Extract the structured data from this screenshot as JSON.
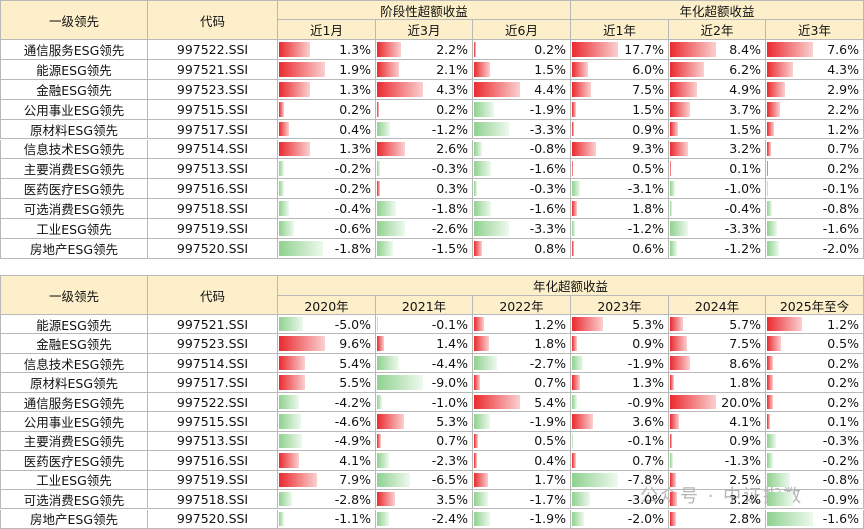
{
  "tables": [
    {
      "header": {
        "name": "一级领先",
        "code": "代码",
        "groups": [
          {
            "label": "阶段性超额收益",
            "columns": [
              "近1月",
              "近3月",
              "近6月"
            ]
          },
          {
            "label": "年化超额收益",
            "columns": [
              "近1年",
              "近2年",
              "近3年"
            ]
          }
        ]
      },
      "rows": [
        [
          "通信服务ESG领先",
          "997522.SSI",
          "1.3%",
          "2.2%",
          "0.2%",
          "17.7%",
          "8.4%",
          "7.6%"
        ],
        [
          "能源ESG领先",
          "997521.SSI",
          "1.9%",
          "2.1%",
          "1.5%",
          "6.0%",
          "6.2%",
          "4.3%"
        ],
        [
          "金融ESG领先",
          "997523.SSI",
          "1.3%",
          "4.3%",
          "4.4%",
          "7.5%",
          "4.9%",
          "2.9%"
        ],
        [
          "公用事业ESG领先",
          "997515.SSI",
          "0.2%",
          "0.2%",
          "-1.9%",
          "1.5%",
          "3.7%",
          "2.2%"
        ],
        [
          "原材料ESG领先",
          "997517.SSI",
          "0.4%",
          "-1.2%",
          "-3.3%",
          "0.9%",
          "1.5%",
          "1.2%"
        ],
        [
          "信息技术ESG领先",
          "997514.SSI",
          "1.3%",
          "2.6%",
          "-0.8%",
          "9.3%",
          "3.2%",
          "0.7%"
        ],
        [
          "主要消费ESG领先",
          "997513.SSI",
          "-0.2%",
          "-0.3%",
          "-1.6%",
          "0.5%",
          "0.1%",
          "0.2%"
        ],
        [
          "医药医疗ESG领先",
          "997516.SSI",
          "-0.2%",
          "0.3%",
          "-0.3%",
          "-3.1%",
          "-1.0%",
          "-0.1%"
        ],
        [
          "可选消费ESG领先",
          "997518.SSI",
          "-0.4%",
          "-1.8%",
          "-1.6%",
          "1.8%",
          "-0.4%",
          "-0.8%"
        ],
        [
          "工业ESG领先",
          "997519.SSI",
          "-0.6%",
          "-2.6%",
          "-3.3%",
          "-1.2%",
          "-3.3%",
          "-1.6%"
        ],
        [
          "房地产ESG领先",
          "997520.SSI",
          "-1.8%",
          "-1.5%",
          "0.8%",
          "0.6%",
          "-1.2%",
          "-2.0%"
        ]
      ]
    },
    {
      "header": {
        "name": "一级领先",
        "code": "代码",
        "groups": [
          {
            "label": "年化超额收益",
            "columns": [
              "2020年",
              "2021年",
              "2022年",
              "2023年",
              "2024年",
              "2025年至今"
            ]
          }
        ]
      },
      "rows": [
        [
          "能源ESG领先",
          "997521.SSI",
          "-5.0%",
          "-0.1%",
          "1.2%",
          "5.3%",
          "5.7%",
          "1.2%"
        ],
        [
          "金融ESG领先",
          "997523.SSI",
          "9.6%",
          "1.4%",
          "1.8%",
          "0.9%",
          "7.5%",
          "0.5%"
        ],
        [
          "信息技术ESG领先",
          "997514.SSI",
          "5.4%",
          "-4.4%",
          "-2.7%",
          "-1.9%",
          "8.6%",
          "0.2%"
        ],
        [
          "原材料ESG领先",
          "997517.SSI",
          "5.5%",
          "-9.0%",
          "0.7%",
          "1.3%",
          "1.8%",
          "0.2%"
        ],
        [
          "通信服务ESG领先",
          "997522.SSI",
          "-4.2%",
          "-1.0%",
          "5.4%",
          "-0.9%",
          "20.0%",
          "0.2%"
        ],
        [
          "公用事业ESG领先",
          "997515.SSI",
          "-4.6%",
          "5.3%",
          "-1.9%",
          "3.6%",
          "4.1%",
          "0.1%"
        ],
        [
          "主要消费ESG领先",
          "997513.SSI",
          "-4.9%",
          "0.7%",
          "0.5%",
          "-0.1%",
          "0.9%",
          "-0.3%"
        ],
        [
          "医药医疗ESG领先",
          "997516.SSI",
          "4.1%",
          "-2.3%",
          "0.4%",
          "0.7%",
          "-1.3%",
          "-0.2%"
        ],
        [
          "工业ESG领先",
          "997519.SSI",
          "7.9%",
          "-6.5%",
          "1.7%",
          "-7.8%",
          "2.5%",
          "-0.8%"
        ],
        [
          "可选消费ESG领先",
          "997518.SSI",
          "-2.8%",
          "3.5%",
          "-1.7%",
          "-3.0%",
          "3.2%",
          "-0.9%"
        ],
        [
          "房地产ESG领先",
          "997520.SSI",
          "-1.1%",
          "-2.4%",
          "-1.9%",
          "-2.0%",
          "2.8%",
          "-1.6%"
        ]
      ]
    }
  ],
  "watermark": "公众号 · 中证指数"
}
